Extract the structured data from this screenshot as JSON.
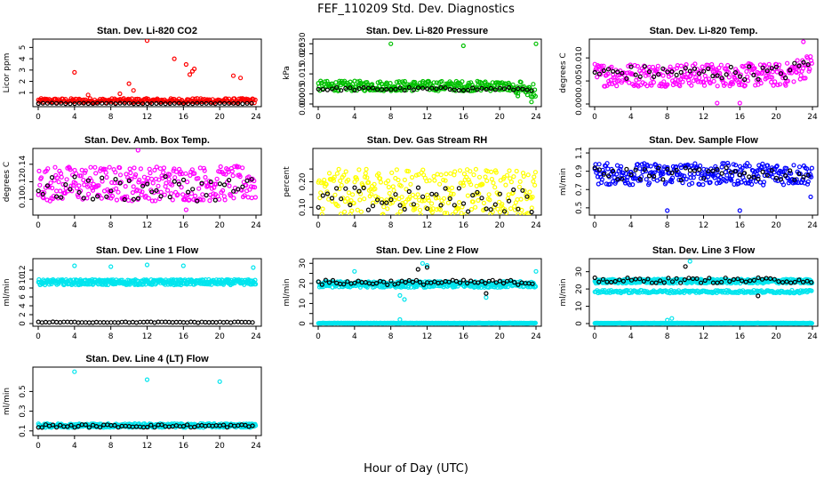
{
  "figure": {
    "title": "FEF_110209  Std. Dev. Diagnostics",
    "xlabel": "Hour of Day (UTC)"
  },
  "chart_data": [
    {
      "type": "scatter",
      "title": "Stan. Dev. Li-820 CO2",
      "ylabel": "Licor ppm",
      "xlim": [
        0,
        24
      ],
      "ylim": [
        0,
        5.5
      ],
      "xticks": [
        0,
        4,
        8,
        12,
        16,
        20,
        24
      ],
      "yticks": [
        1,
        2,
        3,
        4,
        5
      ],
      "grid": false,
      "series": [
        {
          "color": "#ff0000",
          "base": 0.3,
          "spread": 0.2,
          "step": 0.1,
          "outliers": [
            [
              4,
              2.8
            ],
            [
              5.5,
              0.8
            ],
            [
              9,
              0.9
            ],
            [
              10,
              1.8
            ],
            [
              10.5,
              1.2
            ],
            [
              12,
              5.6
            ],
            [
              15,
              4.0
            ],
            [
              16.3,
              3.5
            ],
            [
              16.7,
              2.6
            ],
            [
              17,
              2.9
            ],
            [
              17.2,
              3.1
            ],
            [
              21.5,
              2.5
            ],
            [
              22.3,
              2.3
            ]
          ]
        },
        {
          "color": "#000000",
          "base": 0.05,
          "spread": 0.03,
          "step": 0.5,
          "outliers": []
        }
      ]
    },
    {
      "type": "scatter",
      "title": "Stan. Dev. Li-820 Pressure",
      "ylabel": "kPa",
      "xlim": [
        0,
        24
      ],
      "ylim": [
        0,
        0.031
      ],
      "xticks": [
        0,
        4,
        8,
        12,
        16,
        20,
        24
      ],
      "yticks": [
        0.0,
        0.005,
        0.015,
        0.025
      ],
      "ytick_labels": [
        "0.000",
        "0.005",
        "0.015",
        "0.025"
      ],
      "extra_ytick_top": "0.030",
      "grid": false,
      "series": [
        {
          "color": "#00c000",
          "base": 0.009,
          "spread": 0.0025,
          "step": 0.08,
          "outliers": [
            [
              8,
              0.03
            ],
            [
              16,
              0.029
            ],
            [
              24,
              0.03
            ],
            [
              22,
              0.004
            ],
            [
              23.5,
              0.001
            ]
          ]
        },
        {
          "color": "#000000",
          "base": 0.0075,
          "spread": 0.0008,
          "step": 0.5,
          "outliers": []
        }
      ]
    },
    {
      "type": "scatter",
      "title": "Stan. Dev. Li-820 Temp.",
      "ylabel": "degrees C",
      "xlim": [
        0,
        24
      ],
      "ylim": [
        0,
        0.0135
      ],
      "xticks": [
        0,
        4,
        8,
        12,
        16,
        20,
        24
      ],
      "yticks": [
        0.0,
        0.005,
        0.01
      ],
      "ytick_labels": [
        "0.000",
        "0.005",
        "0.010"
      ],
      "grid": false,
      "series": [
        {
          "color": "#ff00ff",
          "base": 0.0063,
          "spread": 0.0025,
          "step": 0.08,
          "outliers": [
            [
              13.5,
              0.0002
            ],
            [
              16,
              0.0002
            ],
            [
              23,
              0.0135
            ]
          ]
        },
        {
          "color": "#000000",
          "base": 0.0068,
          "spread": 0.0015,
          "step": 0.5,
          "outliers": []
        }
      ]
    },
    {
      "type": "scatter",
      "title": "Stan. Dev. Amb. Box Temp.",
      "ylabel": "degrees C",
      "xlim": [
        0,
        24
      ],
      "ylim": [
        0.085,
        0.155
      ],
      "xticks": [
        0,
        4,
        8,
        12,
        16,
        20,
        24
      ],
      "yticks": [
        0.1,
        0.12,
        0.14
      ],
      "ytick_labels": [
        "0.10",
        "0.12",
        "0.14"
      ],
      "grid": false,
      "series": [
        {
          "color": "#ff00ff",
          "base": 0.118,
          "spread": 0.02,
          "step": 0.08,
          "outliers": [
            [
              16.3,
              0.088
            ],
            [
              11,
              0.156
            ]
          ]
        },
        {
          "color": "#000000",
          "base": 0.112,
          "spread": 0.014,
          "step": 0.5,
          "outliers": []
        }
      ]
    },
    {
      "type": "scatter",
      "title": "Stan. Dev. Gas Stream RH",
      "ylabel": "percent",
      "xlim": [
        0,
        24
      ],
      "ylim": [
        0.08,
        0.32
      ],
      "xticks": [
        0,
        4,
        8,
        12,
        16,
        20,
        24
      ],
      "yticks": [
        0.1,
        0.15,
        0.2,
        0.25
      ],
      "ytick_labels": [
        "0.10",
        "",
        "0.20",
        ""
      ],
      "grid": false,
      "series": [
        {
          "color": "#ffff00",
          "base": 0.16,
          "spread": 0.09,
          "step": 0.08,
          "outliers": []
        },
        {
          "color": "#000000",
          "base": 0.13,
          "spread": 0.05,
          "step": 0.5,
          "outliers": []
        }
      ]
    },
    {
      "type": "scatter",
      "title": "Stan. Dev. Sample Flow",
      "ylabel": "ml/min",
      "xlim": [
        0,
        24
      ],
      "ylim": [
        0.45,
        1.12
      ],
      "xticks": [
        0,
        4,
        8,
        12,
        16,
        20,
        24
      ],
      "yticks": [
        0.5,
        0.7,
        0.9,
        1.1
      ],
      "ytick_labels": [
        "0.5",
        "0.7",
        "0.9",
        "1.1"
      ],
      "grid": false,
      "series": [
        {
          "color": "#0000ff",
          "base": 0.87,
          "spread": 0.12,
          "step": 0.08,
          "outliers": [
            [
              8,
              0.47
            ],
            [
              16,
              0.47
            ],
            [
              23.8,
              0.62
            ]
          ]
        },
        {
          "color": "#000000",
          "base": 0.87,
          "spread": 0.07,
          "step": 0.5,
          "outliers": []
        }
      ]
    },
    {
      "type": "scatter",
      "title": "Stan. Dev. Line 1 Flow",
      "ylabel": "ml/min",
      "xlim": [
        0,
        24
      ],
      "ylim": [
        0,
        14
      ],
      "xticks": [
        0,
        4,
        8,
        12,
        16,
        20,
        24
      ],
      "yticks": [
        0,
        2,
        4,
        6,
        8,
        10,
        12
      ],
      "ytick_labels": [
        "0",
        "2",
        "4",
        "6",
        "8",
        "10",
        "12"
      ],
      "grid": false,
      "series": [
        {
          "color": "#00e5ee",
          "base": 9.3,
          "spread": 0.6,
          "step": 0.06,
          "outliers": [
            [
              4,
              13.0
            ],
            [
              8,
              12.8
            ],
            [
              12,
              13.2
            ],
            [
              16,
              13.0
            ],
            [
              23.7,
              12.6
            ]
          ]
        },
        {
          "color": "#000000",
          "base": 0.3,
          "spread": 0.1,
          "step": 0.4,
          "outliers": []
        }
      ]
    },
    {
      "type": "scatter",
      "title": "Stan. Dev. Line 2 Flow",
      "ylabel": "ml/min",
      "xlim": [
        0,
        24
      ],
      "ylim": [
        0,
        31
      ],
      "xticks": [
        0,
        4,
        8,
        12,
        16,
        20,
        24
      ],
      "yticks": [
        0,
        5,
        10,
        15,
        20,
        25,
        30
      ],
      "ytick_labels": [
        "0",
        "",
        "10",
        "",
        "20",
        "",
        "30"
      ],
      "grid": false,
      "series": [
        {
          "color": "#00e5ee",
          "base": 19.5,
          "spread": 1.5,
          "step": 0.06,
          "outliers": [
            [
              4,
              26
            ],
            [
              9,
              14
            ],
            [
              9.5,
              12
            ],
            [
              11.5,
              30
            ],
            [
              12,
              29
            ],
            [
              18.5,
              13
            ],
            [
              24,
              26
            ],
            [
              9,
              2
            ]
          ]
        },
        {
          "color": "#000000",
          "base": 20.5,
          "spread": 1.2,
          "step": 0.4,
          "outliers": [
            [
              11,
              27
            ],
            [
              12,
              28
            ],
            [
              18.5,
              15
            ]
          ]
        },
        {
          "color": "#00e5ee",
          "base": 0.2,
          "spread": 0.1,
          "step": 0.08,
          "outliers": []
        }
      ]
    },
    {
      "type": "scatter",
      "title": "Stan. Dev. Line 3 Flow",
      "ylabel": "ml/min",
      "xlim": [
        0,
        24
      ],
      "ylim": [
        0,
        36
      ],
      "xticks": [
        0,
        4,
        8,
        12,
        16,
        20,
        24
      ],
      "yticks": [
        0,
        10,
        20,
        30
      ],
      "ytick_labels": [
        "0",
        "10",
        "20",
        "30"
      ],
      "grid": false,
      "series": [
        {
          "color": "#00e5ee",
          "base": 24.5,
          "spread": 1.2,
          "step": 0.06,
          "outliers": [
            [
              10.5,
              36
            ],
            [
              8,
              2
            ],
            [
              8.5,
              3
            ]
          ]
        },
        {
          "color": "#00e5ee",
          "base": 18.5,
          "spread": 0.8,
          "step": 0.12,
          "outliers": []
        },
        {
          "color": "#000000",
          "base": 25,
          "spread": 1.5,
          "step": 0.45,
          "outliers": [
            [
              10,
              33
            ],
            [
              18,
              16
            ]
          ]
        },
        {
          "color": "#00e5ee",
          "base": 0.2,
          "spread": 0.1,
          "step": 0.08,
          "outliers": []
        }
      ]
    },
    {
      "type": "scatter",
      "title": "Stan. Dev. Line 4 (LT) Flow",
      "ylabel": "ml/min",
      "xlim": [
        0,
        24
      ],
      "ylim": [
        0.08,
        0.72
      ],
      "xticks": [
        0,
        4,
        8,
        12,
        16,
        20,
        24
      ],
      "yticks": [
        0.1,
        0.3,
        0.5
      ],
      "ytick_labels": [
        "0.1",
        "0.3",
        "0.5"
      ],
      "grid": false,
      "series": [
        {
          "color": "#00e5ee",
          "base": 0.155,
          "spread": 0.02,
          "step": 0.06,
          "outliers": [
            [
              4,
              0.7
            ],
            [
              12,
              0.62
            ],
            [
              20,
              0.6
            ]
          ]
        },
        {
          "color": "#000000",
          "base": 0.15,
          "spread": 0.015,
          "step": 0.4,
          "outliers": []
        }
      ]
    }
  ]
}
